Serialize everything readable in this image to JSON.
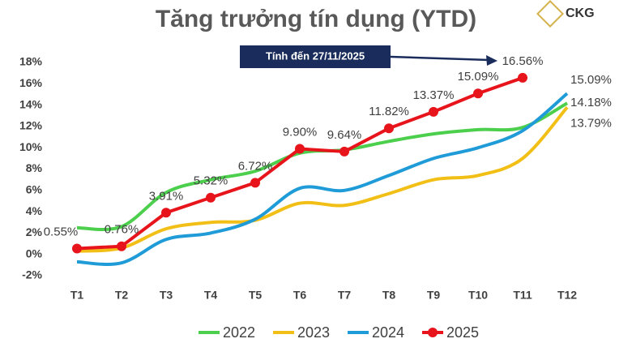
{
  "logo": "CKG",
  "chart_data": {
    "type": "line",
    "title": "Tăng trưởng tín dụng (YTD)",
    "annotation": "Tính đến 27/11/2025",
    "categories": [
      "T1",
      "T2",
      "T3",
      "T4",
      "T5",
      "T6",
      "T7",
      "T8",
      "T9",
      "T10",
      "T11",
      "T12"
    ],
    "ylim": [
      -2,
      18
    ],
    "yticks": [
      {
        "value": -2,
        "label": "-2%"
      },
      {
        "value": 0,
        "label": "0%"
      },
      {
        "value": 2,
        "label": "2%"
      },
      {
        "value": 4,
        "label": "4%"
      },
      {
        "value": 6,
        "label": "6%"
      },
      {
        "value": 8,
        "label": "8%"
      },
      {
        "value": 10,
        "label": "10%"
      },
      {
        "value": 12,
        "label": "12%"
      },
      {
        "value": 14,
        "label": "14%"
      },
      {
        "value": 16,
        "label": "16%"
      },
      {
        "value": 18,
        "label": "18%"
      }
    ],
    "legend": "bottom",
    "series": [
      {
        "name": "2022",
        "color": "#4ccf4c",
        "smooth": true,
        "markers": false,
        "values": [
          2.5,
          2.6,
          5.8,
          7.0,
          7.8,
          9.5,
          9.8,
          10.6,
          11.3,
          11.7,
          11.9,
          14.18
        ],
        "value_labels": [
          null,
          null,
          null,
          null,
          null,
          null,
          null,
          null,
          null,
          null,
          null,
          "14.18%"
        ]
      },
      {
        "name": "2023",
        "color": "#f2bf16",
        "smooth": true,
        "markers": false,
        "values": [
          0.3,
          0.6,
          2.4,
          3.0,
          3.2,
          4.8,
          4.6,
          5.7,
          7.0,
          7.4,
          9.0,
          13.79
        ],
        "value_labels": [
          null,
          null,
          null,
          null,
          null,
          null,
          null,
          null,
          null,
          null,
          null,
          "13.79%"
        ]
      },
      {
        "name": "2024",
        "color": "#1f9bd7",
        "smooth": true,
        "markers": false,
        "values": [
          -0.7,
          -0.8,
          1.4,
          2.0,
          3.3,
          6.2,
          6.0,
          7.4,
          9.0,
          10.0,
          11.6,
          15.09
        ],
        "value_labels": [
          null,
          null,
          null,
          null,
          null,
          null,
          null,
          null,
          null,
          null,
          null,
          "15.09%"
        ]
      },
      {
        "name": "2025",
        "color": "#e8141b",
        "smooth": false,
        "markers": true,
        "values": [
          0.55,
          0.76,
          3.91,
          5.32,
          6.72,
          9.9,
          9.64,
          11.82,
          13.37,
          15.09,
          16.56,
          null
        ],
        "value_labels": [
          "0.55%",
          "0.76%",
          "3.91%",
          "5.32%",
          "6.72%",
          "9.90%",
          "9.64%",
          "11.82%",
          "13.37%",
          "15.09%",
          "16.56%",
          null
        ]
      }
    ]
  }
}
